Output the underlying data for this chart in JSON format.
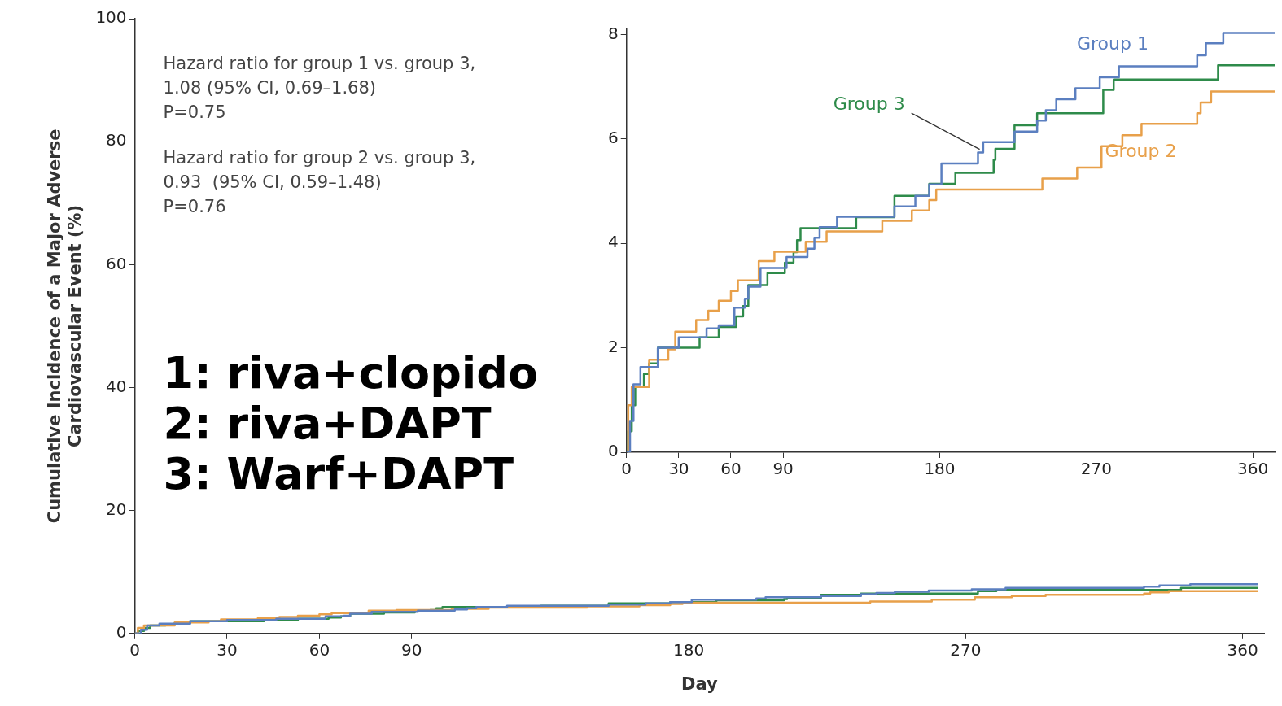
{
  "chart_data": [
    {
      "type": "step",
      "xlabel": "Day",
      "ylabel": "Cumulative Incidence of a Major Adverse\nCardiovascular Event (%)",
      "xlim": [
        0,
        367
      ],
      "xticks": [
        0,
        30,
        60,
        90,
        180,
        270,
        360
      ],
      "ylim": [
        0,
        100
      ],
      "yticks": [
        0,
        20,
        40,
        60,
        80,
        100
      ],
      "annotations": [
        "Hazard ratio for group 1 vs. group 3,\n1.08 (95% CI, 0.69–1.68)\nP=0.75",
        "Hazard ratio for group 2 vs. group 3,\n0.93  (95% CI, 0.59–1.48)\nP=0.76",
        "1: riva+clopido\n2: riva+DAPT\n3: Warf+DAPT"
      ],
      "series": [
        {
          "color": "#5b7fc0",
          "x": [
            0,
            2,
            4,
            8,
            18,
            30,
            46,
            53,
            62,
            68,
            70,
            77,
            92,
            104,
            108,
            111,
            121,
            154,
            166,
            174,
            181,
            202,
            205,
            223,
            236,
            241,
            247,
            258,
            272,
            283,
            328,
            333,
            343,
            365
          ],
          "values": [
            0,
            0.6,
            1.3,
            1.6,
            2.0,
            2.2,
            2.4,
            2.4,
            2.8,
            2.9,
            3.2,
            3.5,
            3.7,
            3.9,
            4.1,
            4.3,
            4.5,
            4.7,
            4.9,
            5.1,
            5.5,
            5.7,
            5.9,
            6.1,
            6.4,
            6.6,
            6.8,
            7.0,
            7.2,
            7.4,
            7.6,
            7.8,
            8.0,
            8.0
          ]
        },
        {
          "color": "#e8a04a",
          "x": [
            0,
            1,
            3,
            13,
            24,
            28,
            40,
            47,
            53,
            60,
            64,
            76,
            85,
            103,
            115,
            147,
            164,
            174,
            178,
            239,
            259,
            273,
            285,
            296,
            328,
            330,
            336,
            365
          ],
          "values": [
            0,
            0.9,
            1.3,
            1.8,
            2.0,
            2.3,
            2.5,
            2.7,
            2.9,
            3.1,
            3.3,
            3.7,
            3.8,
            4.0,
            4.2,
            4.4,
            4.6,
            4.8,
            5.0,
            5.2,
            5.5,
            5.9,
            6.1,
            6.3,
            6.5,
            6.7,
            6.9,
            6.9
          ]
        },
        {
          "color": "#2e8b4a",
          "x": [
            0,
            1,
            3,
            5,
            10,
            13,
            18,
            42,
            53,
            63,
            67,
            70,
            81,
            91,
            96,
            98,
            100,
            132,
            154,
            174,
            189,
            211,
            212,
            223,
            236,
            274,
            280,
            340,
            365
          ],
          "values": [
            0,
            0.4,
            0.9,
            1.3,
            1.5,
            1.7,
            2.0,
            2.2,
            2.4,
            2.6,
            2.8,
            3.2,
            3.4,
            3.6,
            3.8,
            4.1,
            4.3,
            4.5,
            4.9,
            5.1,
            5.4,
            5.6,
            5.8,
            6.3,
            6.5,
            6.9,
            7.1,
            7.4,
            7.4
          ]
        }
      ]
    },
    {
      "type": "step",
      "xlim": [
        0,
        373
      ],
      "xticks": [
        0,
        30,
        60,
        90,
        180,
        270,
        360
      ],
      "ylim": [
        0,
        8.1
      ],
      "yticks": [
        0,
        2,
        4,
        6,
        8
      ],
      "series": [
        {
          "name": "Group 1",
          "color": "#5b7fc0",
          "x": [
            0,
            2,
            4,
            8,
            18,
            30,
            46,
            53,
            62,
            68,
            70,
            77,
            92,
            104,
            108,
            111,
            121,
            154,
            166,
            174,
            181,
            202,
            205,
            223,
            236,
            241,
            247,
            258,
            272,
            283,
            328,
            333,
            343,
            373
          ],
          "values": [
            0,
            0.6,
            1.3,
            1.63,
            2.0,
            2.2,
            2.37,
            2.43,
            2.77,
            2.94,
            3.17,
            3.53,
            3.74,
            3.9,
            4.11,
            4.31,
            4.51,
            4.71,
            4.91,
            5.13,
            5.53,
            5.74,
            5.94,
            6.14,
            6.35,
            6.55,
            6.76,
            6.97,
            7.18,
            7.39,
            7.6,
            7.83,
            8.03,
            8.03
          ]
        },
        {
          "name": "Group 2",
          "color": "#e8a04a",
          "x": [
            0,
            1,
            3,
            13,
            24,
            28,
            40,
            47,
            53,
            60,
            64,
            76,
            85,
            103,
            115,
            147,
            164,
            174,
            178,
            239,
            259,
            273,
            285,
            296,
            328,
            330,
            336,
            373
          ],
          "values": [
            0,
            0.9,
            1.25,
            1.77,
            1.97,
            2.31,
            2.53,
            2.71,
            2.9,
            3.09,
            3.29,
            3.66,
            3.84,
            4.03,
            4.23,
            4.43,
            4.63,
            4.83,
            5.03,
            5.24,
            5.45,
            5.86,
            6.07,
            6.29,
            6.49,
            6.7,
            6.91,
            6.91
          ]
        },
        {
          "name": "Group 3",
          "color": "#2e8b4a",
          "x": [
            0,
            1,
            3,
            5,
            10,
            13,
            18,
            42,
            53,
            63,
            67,
            70,
            81,
            91,
            96,
            98,
            100,
            132,
            154,
            174,
            189,
            211,
            212,
            223,
            236,
            274,
            280,
            340,
            373
          ],
          "values": [
            0,
            0.4,
            0.9,
            1.25,
            1.5,
            1.7,
            2.0,
            2.2,
            2.4,
            2.6,
            2.8,
            3.2,
            3.43,
            3.63,
            3.83,
            4.06,
            4.29,
            4.5,
            4.91,
            5.14,
            5.35,
            5.6,
            5.81,
            6.26,
            6.49,
            6.94,
            7.14,
            7.41,
            7.41
          ]
        }
      ]
    }
  ]
}
